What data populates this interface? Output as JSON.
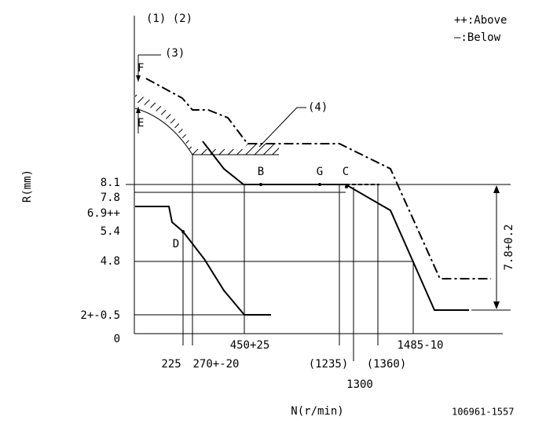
{
  "header": {
    "marks": "(1) (2)",
    "legend_above": "++:Above",
    "legend_below": "—:Below"
  },
  "notes": {
    "n3": "(3)",
    "n4": "(4)",
    "f": "F",
    "e": "E"
  },
  "y_axis": {
    "title": "R(mm)",
    "labels": [
      "8.1",
      "7.8",
      "6.9++",
      "5.4",
      "4.8",
      "2+-0.5",
      "0"
    ]
  },
  "x_axis": {
    "title": "N(r/min)",
    "labels": [
      "225",
      "270+-20",
      "450+25",
      "(1235)",
      "1300",
      "(1360)",
      "1485-10"
    ]
  },
  "points": [
    "B",
    "G",
    "C",
    "D"
  ],
  "dimension": "7.8+0.2",
  "footer": {
    "code": "106961-1557"
  }
}
